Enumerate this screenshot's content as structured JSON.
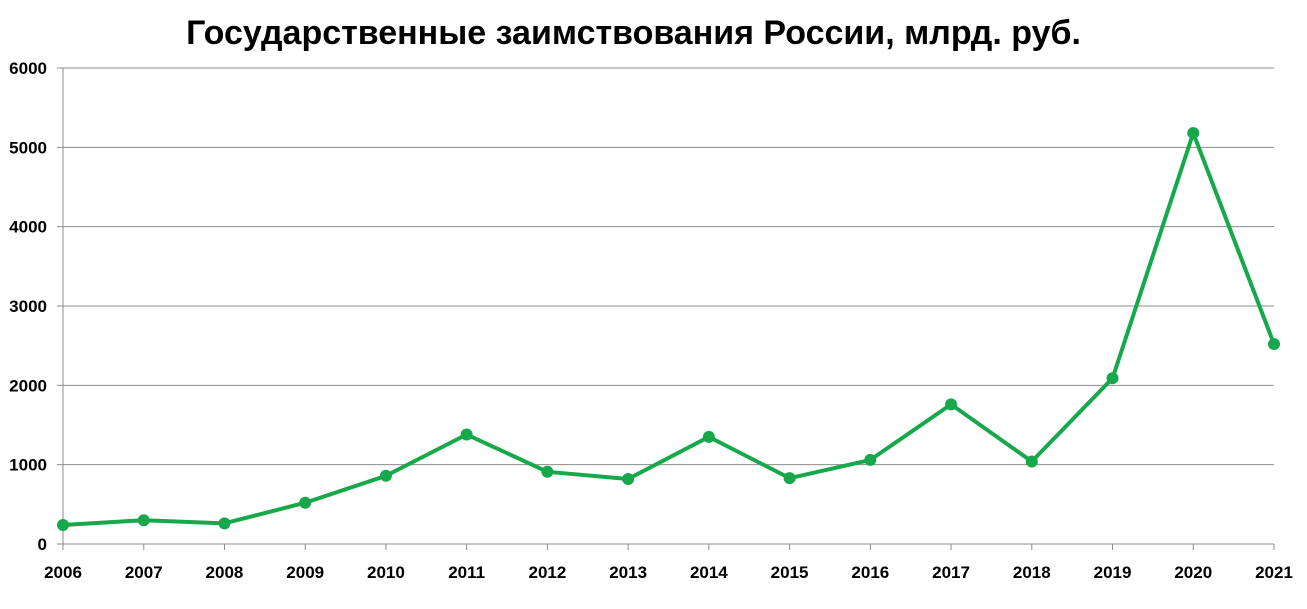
{
  "chart_data": {
    "type": "line",
    "title": "Государственные заимствования России, млрд. руб.",
    "xlabel": "",
    "ylabel": "",
    "x": [
      "2006",
      "2007",
      "2008",
      "2009",
      "2010",
      "2011",
      "2012",
      "2013",
      "2014",
      "2015",
      "2016",
      "2017",
      "2018",
      "2019",
      "2020",
      "2021"
    ],
    "series": [
      {
        "values": [
          240,
          300,
          260,
          520,
          860,
          1380,
          910,
          820,
          1350,
          830,
          1060,
          1760,
          1040,
          2090,
          5180,
          2520
        ],
        "color": "#16a84b"
      }
    ],
    "ylim": [
      0,
      6000
    ],
    "yticks": [
      0,
      1000,
      2000,
      3000,
      4000,
      5000,
      6000
    ],
    "grid": true,
    "legend": "none"
  }
}
